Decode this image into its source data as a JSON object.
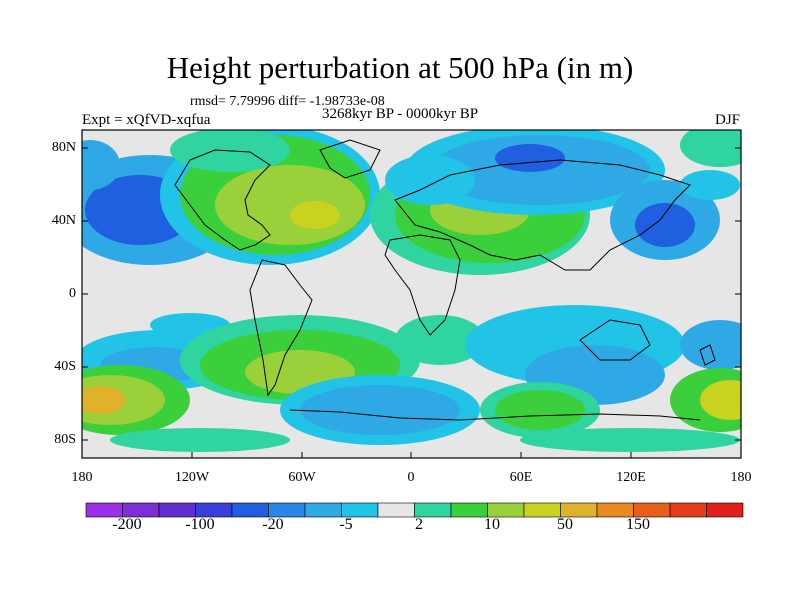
{
  "title": "Height perturbation at 500 hPa (in m)",
  "stats": "rmsd= 7.79996 diff= -1.98733e-08",
  "period": "3268kyr BP - 0000kyr BP",
  "experiment": "Expt = xQfVD-xqfua",
  "season": "DJF",
  "lat_ticks": [
    "80N",
    "40N",
    "0",
    "40S",
    "80S"
  ],
  "lon_ticks": [
    "180",
    "120W",
    "60W",
    "0",
    "60E",
    "120E",
    "180"
  ],
  "colorbar": {
    "colors": [
      "#9b30e6",
      "#7d2fd6",
      "#5f2fcf",
      "#3a3fd9",
      "#1f5fe0",
      "#2c86e8",
      "#2fa9e6",
      "#21c4e6",
      "#e6e6e6",
      "#2fd4a0",
      "#3ccf3c",
      "#9ad13a",
      "#c8d21f",
      "#e0b12a",
      "#e88a1f",
      "#e6601c",
      "#e53b1a",
      "#e01f1a"
    ],
    "labels": [
      "-200",
      "-100",
      "-20",
      "-5",
      "2",
      "10",
      "50",
      "150"
    ]
  }
}
